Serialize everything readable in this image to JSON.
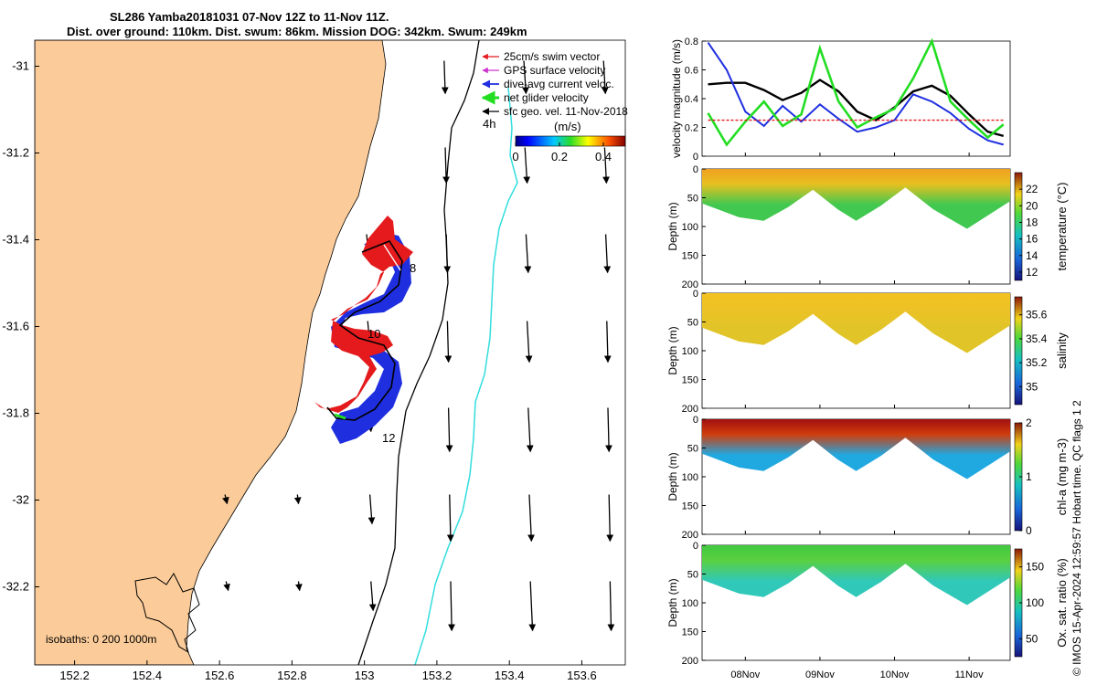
{
  "title": {
    "line1": "SL286 Yamba20181031 07-Nov 12Z to 11-Nov 11Z.",
    "line2": "Dist. over ground: 110km. Dist. swum: 86km. Mission DOG: 342km. Swum: 249km"
  },
  "credit": "© IMOS 15-Apr-2024 12:59:57 Hobart time. QC flags 1  2",
  "colors": {
    "land": "#fbcb99",
    "swim": "#e41a1c",
    "gps": "#cc33cc",
    "current": "#1f2fe0",
    "glider": "#22dd22",
    "geo": "#000000",
    "isobath_200": "#000000",
    "isobath_1000": "#33dddd"
  },
  "map": {
    "xticks": [
      "152.2",
      "152.4",
      "152.6",
      "152.8",
      "153",
      "153.2",
      "153.4",
      "153.6"
    ],
    "yticks": [
      "-31",
      "-31.2",
      "-31.4",
      "-31.6",
      "-31.8",
      "-32",
      "-32.2"
    ],
    "xlim": [
      152.09,
      153.72
    ],
    "ylim": [
      -32.38,
      -30.94
    ],
    "legend": {
      "swim": "25cm/s swim vector",
      "gps": "GPS surface velocity",
      "current": "dive-avg current veloc.",
      "glider": "net glider velocity",
      "geo": "sfc geo. vel. 11-Nov-2018"
    },
    "colorbar_label": "(m/s)",
    "colorbar_ticks": [
      "0",
      "0.2",
      "0.4"
    ],
    "colorbar_range": [
      0,
      0.5
    ],
    "time_label": "4h",
    "day_labels": [
      "8",
      "10",
      "12"
    ],
    "isobaths_text": "isobaths: 0   200  1000m"
  },
  "chart_data": [
    {
      "type": "line",
      "ylabel": "velocity magnitude (m/s)",
      "ylim": [
        0,
        0.8
      ],
      "yticks": [
        "0",
        "0.2",
        "0.4",
        "0.6",
        "0.8"
      ],
      "x_dates": [
        "08Nov",
        "09Nov",
        "10Nov",
        "11Nov"
      ],
      "x_days": [
        7.5,
        7.75,
        8.0,
        8.25,
        8.5,
        8.75,
        9.0,
        9.25,
        9.5,
        9.75,
        10.0,
        10.25,
        10.5,
        10.75,
        11.0,
        11.25,
        11.46
      ],
      "series": [
        {
          "key": "geo",
          "values": [
            0.5,
            0.51,
            0.51,
            0.46,
            0.39,
            0.44,
            0.53,
            0.45,
            0.31,
            0.25,
            0.34,
            0.45,
            0.49,
            0.42,
            0.29,
            0.17,
            0.14
          ]
        },
        {
          "key": "current",
          "values": [
            0.79,
            0.6,
            0.31,
            0.21,
            0.35,
            0.24,
            0.36,
            0.26,
            0.17,
            0.2,
            0.25,
            0.43,
            0.38,
            0.3,
            0.19,
            0.11,
            0.08
          ]
        },
        {
          "key": "glider",
          "values": [
            0.3,
            0.08,
            0.24,
            0.38,
            0.21,
            0.29,
            0.75,
            0.38,
            0.2,
            0.27,
            0.33,
            0.54,
            0.8,
            0.38,
            0.25,
            0.13,
            0.22
          ]
        },
        {
          "key": "swim",
          "values": [
            0.25,
            0.25,
            0.25,
            0.25,
            0.25,
            0.25,
            0.25,
            0.25,
            0.25,
            0.25,
            0.25,
            0.25,
            0.25,
            0.25,
            0.25,
            0.25,
            0.25
          ]
        }
      ]
    },
    {
      "type": "heatmap",
      "ylabel": "Depth (m)",
      "clabel": "temperature (°C)",
      "ylim": [
        0,
        200
      ],
      "yticks": [
        "0",
        "50",
        "100",
        "150",
        "200"
      ],
      "clim": [
        11,
        24
      ],
      "cticks": [
        "12",
        "14",
        "16",
        "18",
        "20",
        "22"
      ],
      "surface_value": 21.5,
      "deep_value": 18.6
    },
    {
      "type": "heatmap",
      "ylabel": "Depth (m)",
      "clabel": "salinity",
      "ylim": [
        0,
        200
      ],
      "yticks": [
        "0",
        "50",
        "100",
        "150",
        "200"
      ],
      "clim": [
        34.85,
        35.75
      ],
      "cticks": [
        "35",
        "35.2",
        "35.4",
        "35.6"
      ],
      "surface_value": 35.5,
      "deep_value": 35.43
    },
    {
      "type": "heatmap",
      "ylabel": "Depth (m)",
      "clabel": "chl-a (mg m-3)",
      "ylim": [
        0,
        200
      ],
      "yticks": [
        "0",
        "50",
        "100",
        "150",
        "200"
      ],
      "clim": [
        0,
        2
      ],
      "cticks": [
        "0",
        "1",
        "2"
      ],
      "surface_value": 1.9,
      "deep_value": 0.55
    },
    {
      "type": "heatmap",
      "ylabel": "Depth (m)",
      "clabel": "Ox. sat. ratio (%)",
      "ylim": [
        0,
        200
      ],
      "yticks": [
        "0",
        "50",
        "100",
        "150",
        "200"
      ],
      "clim": [
        25,
        175
      ],
      "cticks": [
        "50",
        "100",
        "150"
      ],
      "surface_value": 118,
      "deep_value": 96
    }
  ]
}
